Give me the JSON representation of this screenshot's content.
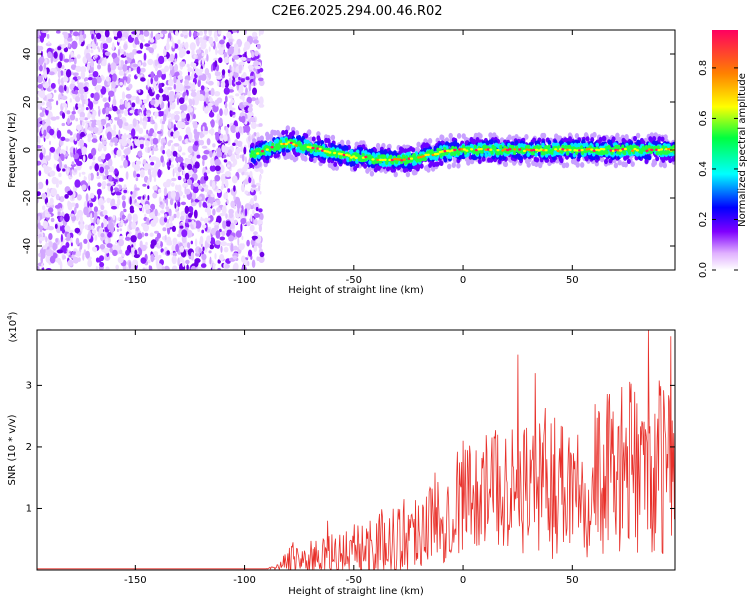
{
  "title": "C2E6.2025.294.00.46.R02",
  "chart_data": [
    {
      "type": "heatmap",
      "name": "spectrogram",
      "xlabel": "Height of straight line (km)",
      "ylabel": "Frequency (Hz)",
      "xlim": [
        -195,
        97
      ],
      "ylim": [
        -50,
        50
      ],
      "x_ticks": [
        -150,
        -100,
        -50,
        0,
        50
      ],
      "x_tick_labels": [
        "-150",
        "-100",
        "-50",
        "0",
        "50"
      ],
      "y_ticks": [
        -40,
        -20,
        0,
        20,
        40
      ],
      "y_tick_labels": [
        "-40",
        "-20",
        "0",
        "20",
        "40"
      ],
      "noise_region_x": [
        -195,
        -92
      ],
      "signal_region_x": [
        -97,
        97
      ],
      "signal_band_center": [
        {
          "x": -97,
          "y": -2
        },
        {
          "x": -90,
          "y": 0
        },
        {
          "x": -85,
          "y": 2
        },
        {
          "x": -80,
          "y": 3
        },
        {
          "x": -75,
          "y": 2
        },
        {
          "x": -70,
          "y": 1
        },
        {
          "x": -65,
          "y": 0
        },
        {
          "x": -60,
          "y": -1
        },
        {
          "x": -55,
          "y": -2
        },
        {
          "x": -50,
          "y": -3
        },
        {
          "x": -45,
          "y": -3
        },
        {
          "x": -40,
          "y": -4
        },
        {
          "x": -35,
          "y": -4
        },
        {
          "x": -30,
          "y": -4
        },
        {
          "x": -25,
          "y": -4
        },
        {
          "x": -20,
          "y": -3
        },
        {
          "x": -15,
          "y": -2
        },
        {
          "x": -10,
          "y": -1
        },
        {
          "x": 0,
          "y": 0
        },
        {
          "x": 10,
          "y": 0
        },
        {
          "x": 20,
          "y": 0
        },
        {
          "x": 30,
          "y": 0
        },
        {
          "x": 40,
          "y": 0
        },
        {
          "x": 50,
          "y": 0
        },
        {
          "x": 60,
          "y": 0
        },
        {
          "x": 70,
          "y": 0
        },
        {
          "x": 80,
          "y": 0
        },
        {
          "x": 97,
          "y": 0
        }
      ],
      "colorbar": {
        "label": "Normalized spectral amplitude",
        "range": [
          0,
          0.95
        ],
        "ticks": [
          0.0,
          0.2,
          0.4,
          0.6,
          0.8
        ],
        "tick_labels": [
          "0.0",
          "0.2",
          "0.4",
          "0.6",
          "0.8"
        ],
        "colors": [
          "#ffffff",
          "#e0b0ff",
          "#8000ff",
          "#0000ff",
          "#00ffff",
          "#00ff40",
          "#ffff00",
          "#ff8000",
          "#ff0060"
        ]
      }
    },
    {
      "type": "line",
      "name": "snr",
      "xlabel": "Height of straight line (km)",
      "ylabel": "SNR (10 * v/v)",
      "multiplier_label": "(x10",
      "multiplier_exp": "4",
      "multiplier_close": ")",
      "xlim": [
        -195,
        97
      ],
      "ylim": [
        0,
        3.9
      ],
      "x_ticks": [
        -150,
        -100,
        -50,
        0,
        50
      ],
      "x_tick_labels": [
        "-150",
        "-100",
        "-50",
        "0",
        "50"
      ],
      "y_ticks": [
        1,
        2,
        3
      ],
      "y_tick_labels": [
        "1",
        "2",
        "3"
      ],
      "color": "#e8302a",
      "envelope": [
        {
          "x": -195,
          "base": 0.02,
          "amp": 0.0
        },
        {
          "x": -90,
          "base": 0.02,
          "amp": 0.0
        },
        {
          "x": -85,
          "base": 0.05,
          "amp": 0.05
        },
        {
          "x": -80,
          "base": 0.15,
          "amp": 0.25
        },
        {
          "x": -70,
          "base": 0.2,
          "amp": 0.3
        },
        {
          "x": -60,
          "base": 0.25,
          "amp": 0.4
        },
        {
          "x": -50,
          "base": 0.3,
          "amp": 0.5
        },
        {
          "x": -40,
          "base": 0.4,
          "amp": 0.6
        },
        {
          "x": -30,
          "base": 0.5,
          "amp": 0.7
        },
        {
          "x": -20,
          "base": 0.7,
          "amp": 0.8
        },
        {
          "x": -10,
          "base": 0.9,
          "amp": 0.9
        },
        {
          "x": 0,
          "base": 1.2,
          "amp": 1.0
        },
        {
          "x": 10,
          "base": 1.3,
          "amp": 1.0
        },
        {
          "x": 20,
          "base": 1.4,
          "amp": 1.2
        },
        {
          "x": 30,
          "base": 1.4,
          "amp": 1.3
        },
        {
          "x": 40,
          "base": 1.4,
          "amp": 1.4
        },
        {
          "x": 50,
          "base": 1.5,
          "amp": 1.4
        },
        {
          "x": 60,
          "base": 1.5,
          "amp": 1.5
        },
        {
          "x": 70,
          "base": 1.6,
          "amp": 1.5
        },
        {
          "x": 80,
          "base": 1.7,
          "amp": 1.6
        },
        {
          "x": 97,
          "base": 1.6,
          "amp": 1.6
        }
      ],
      "notable_peaks": [
        {
          "x": -78,
          "y": 0.45
        },
        {
          "x": -62,
          "y": 0.8
        },
        {
          "x": 0,
          "y": 2.1
        },
        {
          "x": 25,
          "y": 3.5
        },
        {
          "x": 33,
          "y": 3.2
        },
        {
          "x": 85,
          "y": 3.9
        },
        {
          "x": 95,
          "y": 3.8
        }
      ]
    }
  ]
}
